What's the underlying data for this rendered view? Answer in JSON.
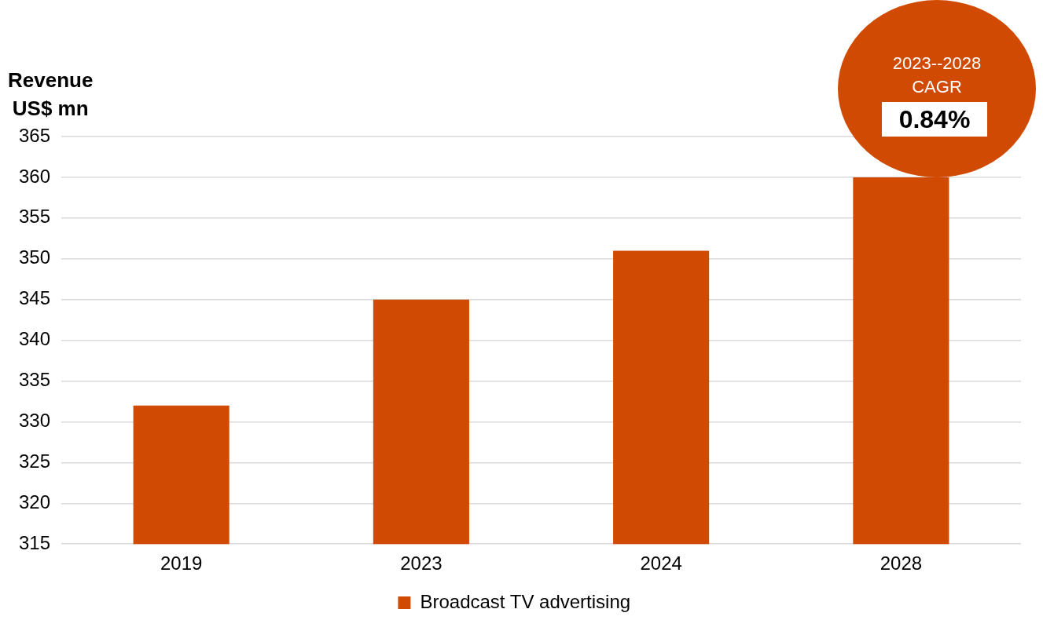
{
  "chart_data": {
    "type": "bar",
    "ylabel": "Revenue\nUS$ mn",
    "categories": [
      "2019",
      "2023",
      "2024",
      "2028"
    ],
    "series": [
      {
        "name": "Broadcast TV advertising",
        "color": "#d04a02",
        "values": [
          332,
          345,
          351,
          360
        ]
      }
    ],
    "ylim": [
      315,
      365
    ],
    "yticks": [
      315,
      320,
      325,
      330,
      335,
      340,
      345,
      350,
      355,
      360,
      365
    ],
    "grid": "y",
    "legend": "bottom",
    "annotations": [
      "2023--2028\nCAGR",
      "0.84%"
    ]
  }
}
